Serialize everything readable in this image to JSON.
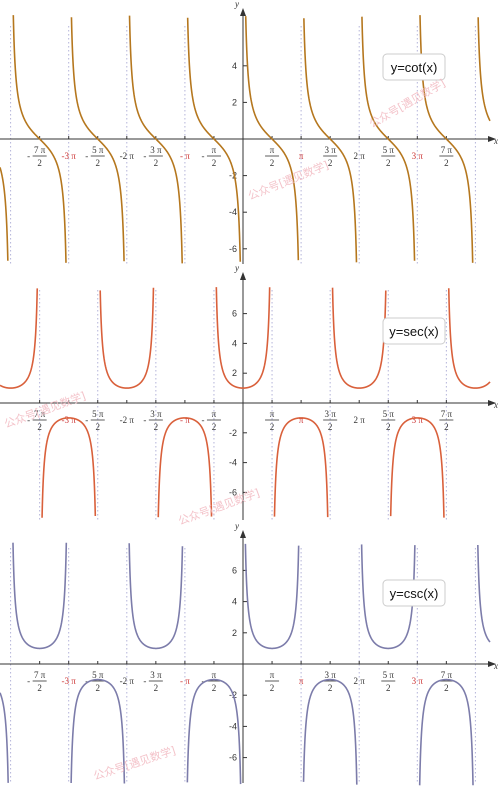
{
  "chart_data": [
    {
      "type": "line",
      "function": "cot",
      "legend": "y=cot(x)",
      "xlabel": "x",
      "ylabel": "y",
      "xlim": [
        -12.9,
        12.9
      ],
      "ylim": [
        -6.5,
        6.5
      ],
      "yticks": [
        "-6",
        "-4",
        "-2",
        "2",
        "4"
      ],
      "xticks": [
        "-7π/2",
        "-3π",
        "-5π/2",
        "-2π",
        "-3π/2",
        "-π",
        "-π/2",
        "π/2",
        "π",
        "3π/2",
        "2π",
        "5π/2",
        "3π",
        "7π/2"
      ],
      "asymptotes": [
        "-4π",
        "-3π",
        "-2π",
        "-π",
        "0",
        "π",
        "2π",
        "3π",
        "4π"
      ],
      "color": "#b5771e"
    },
    {
      "type": "line",
      "function": "sec",
      "legend": "y=sec(x)",
      "xlabel": "x",
      "ylabel": "y",
      "xlim": [
        -12.9,
        12.9
      ],
      "ylim": [
        -7.5,
        7.5
      ],
      "yticks": [
        "-6",
        "-4",
        "-2",
        "2",
        "4",
        "6"
      ],
      "xticks": [
        "-7π/2",
        "-3π",
        "-5π/2",
        "-2π",
        "-3π/2",
        "-π",
        "-π/2",
        "π/2",
        "π",
        "3π/2",
        "2π",
        "5π/2",
        "3π",
        "7π/2"
      ],
      "asymptotes": [
        "-7π/2",
        "-5π/2",
        "-3π/2",
        "-π/2",
        "π/2",
        "3π/2",
        "5π/2",
        "7π/2"
      ],
      "color": "#d9603b"
    },
    {
      "type": "line",
      "function": "csc",
      "legend": "y=csc(x)",
      "xlabel": "x",
      "ylabel": "y",
      "xlim": [
        -12.9,
        12.9
      ],
      "ylim": [
        -7.5,
        7.5
      ],
      "yticks": [
        "-6",
        "-4",
        "-2",
        "2",
        "4",
        "6"
      ],
      "xticks": [
        "-7π/2",
        "-3π",
        "-5π/2",
        "-2π",
        "-3π/2",
        "-π",
        "-π/2",
        "π/2",
        "π",
        "3π/2",
        "2π",
        "5π/2",
        "3π",
        "7π/2"
      ],
      "asymptotes": [
        "-4π",
        "-3π",
        "-2π",
        "-π",
        "0",
        "π",
        "2π",
        "3π",
        "4π"
      ],
      "color": "#7c7caa"
    }
  ],
  "watermark": "公众号[遇见数学]"
}
